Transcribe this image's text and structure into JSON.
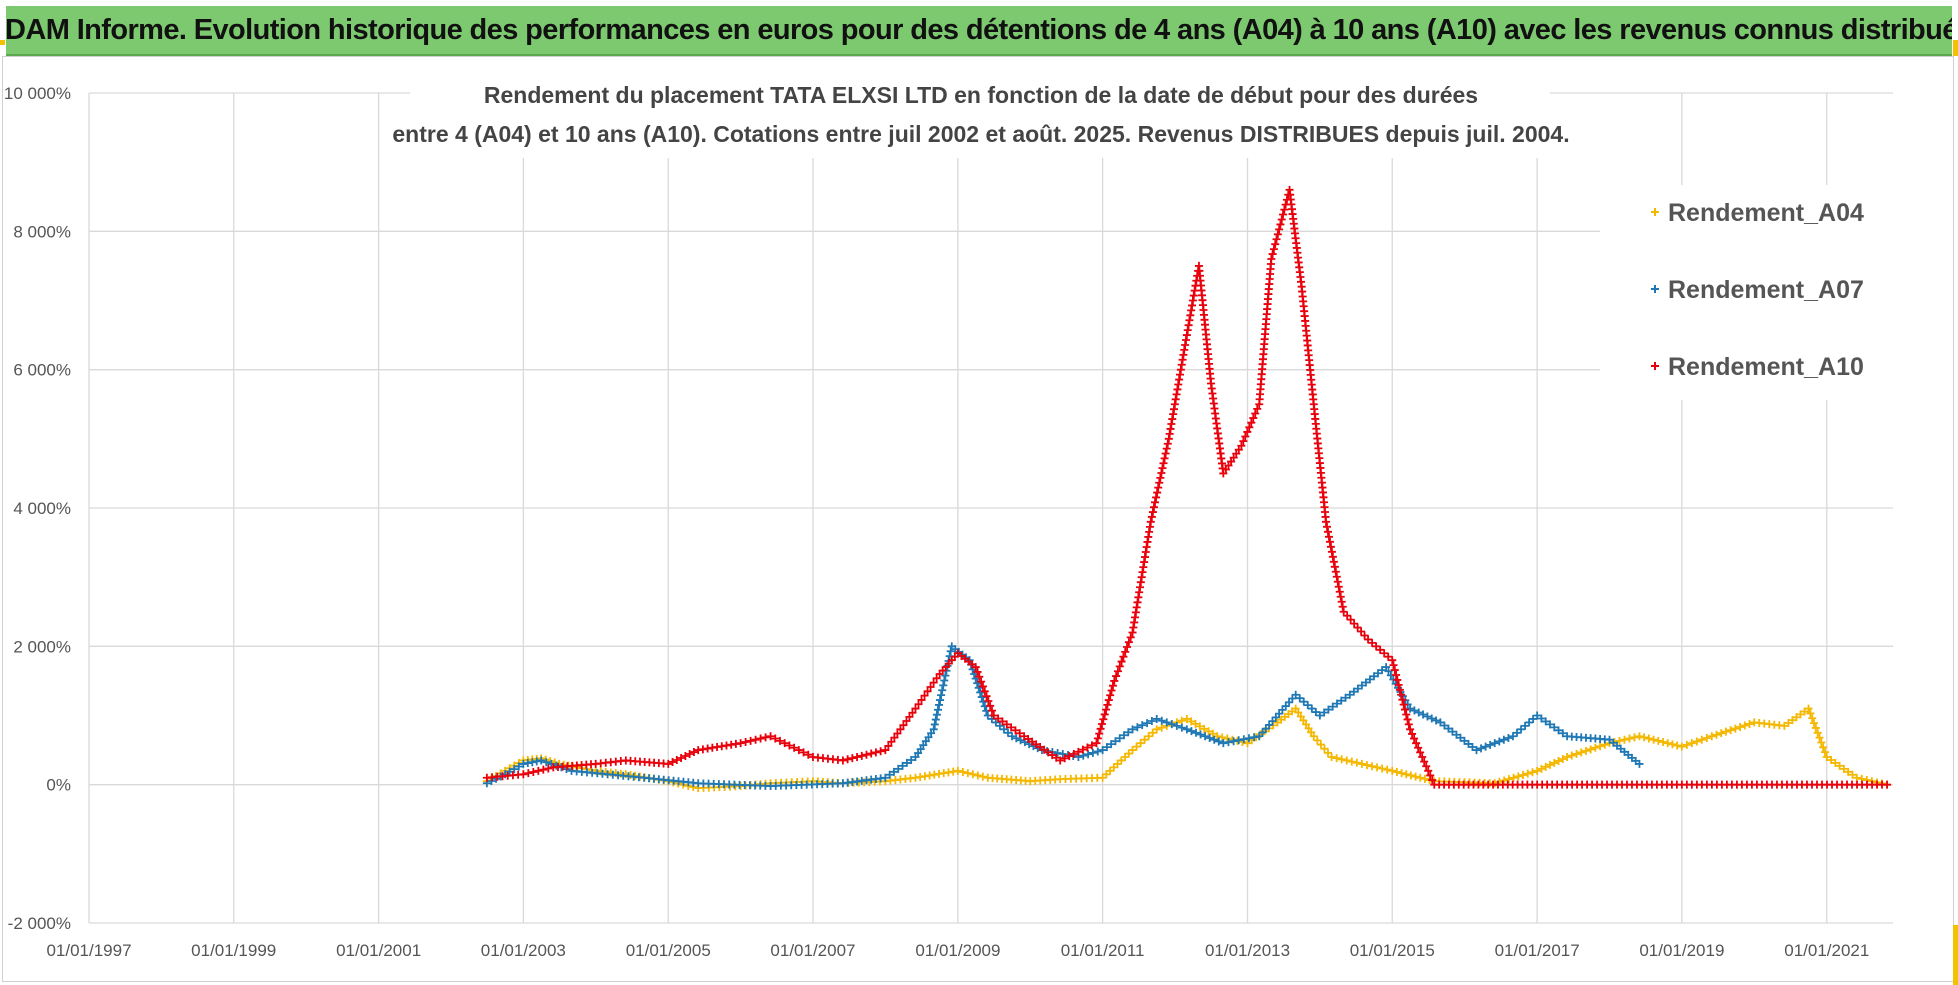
{
  "banner": {
    "title": "ADAM Informe. Evolution historique des performances en euros pour des détentions de 4 ans (A04) à 10 ans (A10) avec les revenus connus distribués"
  },
  "chart_data": {
    "type": "scatter",
    "title_line1": "Rendement du placement TATA ELXSI LTD en fonction de la date de début pour des durées",
    "title_line2": "entre 4 (A04) et 10 ans (A10). Cotations entre juil 2002 et août. 2025. Revenus DISTRIBUES depuis juil. 2004.",
    "xlabel": "",
    "ylabel": "",
    "xlim": [
      "1997-01-01",
      "2021-12-01"
    ],
    "ylim": [
      -2000,
      10000
    ],
    "x_ticks": [
      "01/01/1997",
      "01/01/1999",
      "01/01/2001",
      "01/01/2003",
      "01/01/2005",
      "01/01/2007",
      "01/01/2009",
      "01/01/2011",
      "01/01/2013",
      "01/01/2015",
      "01/01/2017",
      "01/01/2019",
      "01/01/2021"
    ],
    "y_ticks": [
      {
        "value": -2000,
        "label": "-2 000%"
      },
      {
        "value": 0,
        "label": "0%"
      },
      {
        "value": 2000,
        "label": "2 000%"
      },
      {
        "value": 4000,
        "label": "4 000%"
      },
      {
        "value": 6000,
        "label": "6 000%"
      },
      {
        "value": 8000,
        "label": "8 000%"
      },
      {
        "value": 10000,
        "label": "10 000%"
      }
    ],
    "grid": true,
    "legend_position": "top-right",
    "series": [
      {
        "name": "Rendement_A04",
        "color": "#f5b800",
        "points": [
          [
            "2002-07-01",
            50
          ],
          [
            "2002-10-01",
            200
          ],
          [
            "2003-01-01",
            350
          ],
          [
            "2003-04-01",
            380
          ],
          [
            "2003-07-01",
            300
          ],
          [
            "2003-10-01",
            250
          ],
          [
            "2004-01-01",
            200
          ],
          [
            "2004-06-01",
            150
          ],
          [
            "2005-01-01",
            50
          ],
          [
            "2005-06-01",
            -50
          ],
          [
            "2006-01-01",
            -20
          ],
          [
            "2006-06-01",
            20
          ],
          [
            "2007-01-01",
            50
          ],
          [
            "2007-06-01",
            20
          ],
          [
            "2008-01-01",
            50
          ],
          [
            "2008-06-01",
            100
          ],
          [
            "2009-01-01",
            200
          ],
          [
            "2009-06-01",
            100
          ],
          [
            "2010-01-01",
            50
          ],
          [
            "2010-06-01",
            80
          ],
          [
            "2011-01-01",
            100
          ],
          [
            "2011-06-01",
            500
          ],
          [
            "2011-10-01",
            800
          ],
          [
            "2012-03-01",
            950
          ],
          [
            "2012-08-01",
            700
          ],
          [
            "2013-01-01",
            600
          ],
          [
            "2013-06-01",
            900
          ],
          [
            "2013-09-01",
            1100
          ],
          [
            "2013-12-01",
            700
          ],
          [
            "2014-03-01",
            400
          ],
          [
            "2014-08-01",
            300
          ],
          [
            "2015-01-01",
            200
          ],
          [
            "2015-08-01",
            50
          ],
          [
            "2016-06-01",
            20
          ],
          [
            "2017-01-01",
            200
          ],
          [
            "2017-06-01",
            400
          ],
          [
            "2018-01-01",
            600
          ],
          [
            "2018-06-01",
            700
          ],
          [
            "2019-01-01",
            550
          ],
          [
            "2019-06-01",
            700
          ],
          [
            "2020-01-01",
            900
          ],
          [
            "2020-06-01",
            850
          ],
          [
            "2020-10-01",
            1100
          ],
          [
            "2021-01-01",
            400
          ],
          [
            "2021-06-01",
            100
          ],
          [
            "2021-11-01",
            0
          ]
        ]
      },
      {
        "name": "Rendement_A07",
        "color": "#1f78b4",
        "points": [
          [
            "2002-07-01",
            20
          ],
          [
            "2002-10-01",
            150
          ],
          [
            "2003-01-01",
            300
          ],
          [
            "2003-04-01",
            350
          ],
          [
            "2003-09-01",
            200
          ],
          [
            "2004-03-01",
            150
          ],
          [
            "2004-09-01",
            100
          ],
          [
            "2005-06-01",
            20
          ],
          [
            "2006-06-01",
            -20
          ],
          [
            "2007-06-01",
            20
          ],
          [
            "2008-01-01",
            100
          ],
          [
            "2008-06-01",
            400
          ],
          [
            "2008-09-01",
            800
          ],
          [
            "2008-12-01",
            2000
          ],
          [
            "2009-03-01",
            1800
          ],
          [
            "2009-06-01",
            1000
          ],
          [
            "2009-10-01",
            700
          ],
          [
            "2010-03-01",
            500
          ],
          [
            "2010-09-01",
            400
          ],
          [
            "2011-01-01",
            500
          ],
          [
            "2011-06-01",
            800
          ],
          [
            "2011-10-01",
            950
          ],
          [
            "2012-03-01",
            800
          ],
          [
            "2012-09-01",
            600
          ],
          [
            "2013-03-01",
            700
          ],
          [
            "2013-09-01",
            1300
          ],
          [
            "2014-01-01",
            1000
          ],
          [
            "2014-06-01",
            1300
          ],
          [
            "2014-12-01",
            1700
          ],
          [
            "2015-04-01",
            1100
          ],
          [
            "2015-09-01",
            900
          ],
          [
            "2016-03-01",
            500
          ],
          [
            "2016-09-01",
            700
          ],
          [
            "2017-01-01",
            1000
          ],
          [
            "2017-06-01",
            700
          ],
          [
            "2018-01-01",
            650
          ],
          [
            "2018-06-01",
            300
          ]
        ]
      },
      {
        "name": "Rendement_A10",
        "color": "#e8000b",
        "points": [
          [
            "2002-07-01",
            100
          ],
          [
            "2003-01-01",
            150
          ],
          [
            "2003-06-01",
            250
          ],
          [
            "2004-01-01",
            300
          ],
          [
            "2004-06-01",
            350
          ],
          [
            "2005-01-01",
            300
          ],
          [
            "2005-06-01",
            500
          ],
          [
            "2006-01-01",
            600
          ],
          [
            "2006-06-01",
            700
          ],
          [
            "2007-01-01",
            400
          ],
          [
            "2007-06-01",
            350
          ],
          [
            "2008-01-01",
            500
          ],
          [
            "2008-06-01",
            1100
          ],
          [
            "2008-10-01",
            1600
          ],
          [
            "2009-01-01",
            1900
          ],
          [
            "2009-04-01",
            1700
          ],
          [
            "2009-07-01",
            1000
          ],
          [
            "2009-12-01",
            700
          ],
          [
            "2010-06-01",
            350
          ],
          [
            "2010-12-01",
            600
          ],
          [
            "2011-03-01",
            1500
          ],
          [
            "2011-06-01",
            2200
          ],
          [
            "2011-09-01",
            3800
          ],
          [
            "2011-12-01",
            5000
          ],
          [
            "2012-03-01",
            6500
          ],
          [
            "2012-05-01",
            7500
          ],
          [
            "2012-07-01",
            5800
          ],
          [
            "2012-09-01",
            4500
          ],
          [
            "2012-12-01",
            4900
          ],
          [
            "2013-03-01",
            5500
          ],
          [
            "2013-05-01",
            7600
          ],
          [
            "2013-08-01",
            8600
          ],
          [
            "2013-10-01",
            7200
          ],
          [
            "2013-12-01",
            5500
          ],
          [
            "2014-02-01",
            3800
          ],
          [
            "2014-05-01",
            2500
          ],
          [
            "2014-09-01",
            2100
          ],
          [
            "2015-01-01",
            1800
          ],
          [
            "2015-04-01",
            800
          ],
          [
            "2015-08-01",
            0
          ],
          [
            "2017-01-01",
            0
          ],
          [
            "2019-01-01",
            0
          ],
          [
            "2021-11-01",
            0
          ]
        ]
      }
    ]
  }
}
